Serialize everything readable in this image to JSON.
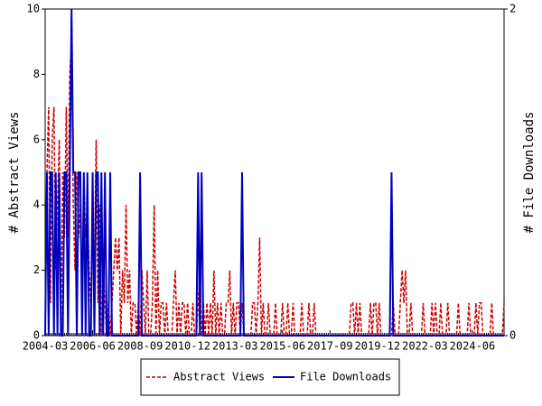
{
  "chart_data": {
    "type": "line",
    "y_label": "# Abstract Views",
    "y2_label": "# File Downloads",
    "categories": [
      "2004-03",
      null,
      null,
      null,
      null,
      null,
      null,
      null,
      null,
      null,
      null,
      null,
      null,
      null,
      null,
      null,
      null,
      null,
      null,
      null,
      null,
      null,
      null,
      null,
      null,
      null,
      null,
      "2006-06",
      null,
      null,
      null,
      null,
      null,
      null,
      null,
      null,
      null,
      null,
      null,
      null,
      null,
      null,
      null,
      null,
      null,
      null,
      null,
      null,
      null,
      null,
      null,
      null,
      null,
      null,
      "2008-09",
      null,
      null,
      null,
      null,
      null,
      null,
      null,
      null,
      null,
      null,
      null,
      null,
      null,
      null,
      null,
      null,
      null,
      null,
      null,
      null,
      null,
      null,
      null,
      null,
      null,
      null,
      "2010-12",
      null,
      null,
      null,
      null,
      null,
      null,
      null,
      null,
      null,
      null,
      null,
      null,
      null,
      null,
      null,
      null,
      null,
      null,
      null,
      null,
      null,
      null,
      null,
      null,
      null,
      null,
      "2013-03",
      null,
      null,
      null,
      null,
      null,
      null,
      null,
      null,
      null,
      null,
      null,
      null,
      null,
      null,
      null,
      null,
      null,
      null,
      null,
      null,
      null,
      null,
      null,
      null,
      null,
      null,
      "2015-06",
      null,
      null,
      null,
      null,
      null,
      null,
      null,
      null,
      null,
      null,
      null,
      null,
      null,
      null,
      null,
      null,
      null,
      null,
      null,
      null,
      null,
      null,
      null,
      null,
      null,
      null,
      "2017-09",
      null,
      null,
      null,
      null,
      null,
      null,
      null,
      null,
      null,
      null,
      null,
      null,
      null,
      null,
      null,
      null,
      null,
      null,
      null,
      null,
      null,
      null,
      null,
      null,
      null,
      null,
      "2019-12",
      null,
      null,
      null,
      null,
      null,
      null,
      null,
      null,
      null,
      null,
      null,
      null,
      null,
      null,
      null,
      null,
      null,
      null,
      null,
      null,
      null,
      null,
      null,
      null,
      null,
      null,
      "2022-03",
      null,
      null,
      null,
      null,
      null,
      null,
      null,
      null,
      null,
      null,
      null,
      null,
      null,
      null,
      null,
      null,
      null,
      null,
      null,
      null,
      null,
      null,
      null,
      null,
      null,
      null,
      "2024-06",
      null,
      null,
      null,
      null,
      null,
      null,
      null,
      null,
      null,
      null,
      null,
      null,
      null,
      null,
      null,
      null,
      null,
      null
    ],
    "series": [
      {
        "name": "Abstract Views",
        "color": "#cc0000",
        "dash": true,
        "values": [
          0,
          5,
          7,
          1,
          6,
          7,
          2,
          4,
          6,
          0,
          5,
          3,
          7,
          3,
          8,
          9,
          4,
          2,
          5,
          3,
          4,
          1,
          5,
          3,
          4,
          2,
          1,
          3,
          2,
          6,
          1,
          4,
          0,
          2,
          1,
          0,
          1,
          0,
          1,
          2,
          3,
          2,
          3,
          0,
          2,
          1,
          4,
          1,
          2,
          0,
          1,
          1,
          0,
          1,
          0,
          2,
          1,
          0,
          2,
          0,
          0,
          1,
          4,
          0,
          2,
          0,
          1,
          1,
          0,
          1,
          0,
          0,
          0,
          1,
          2,
          0,
          1,
          0,
          1,
          1,
          0,
          1,
          0,
          0,
          1,
          0,
          0,
          1,
          2,
          0,
          1,
          0,
          1,
          0,
          1,
          0,
          2,
          0,
          1,
          0,
          1,
          0,
          0,
          1,
          1,
          2,
          0,
          1,
          0,
          1,
          1,
          0,
          1,
          0,
          0,
          0,
          0,
          0,
          1,
          1,
          0,
          1,
          3,
          0,
          1,
          0,
          0,
          1,
          0,
          0,
          0,
          1,
          0,
          0,
          0,
          1,
          0,
          0,
          1,
          0,
          0,
          1,
          0,
          0,
          0,
          0,
          1,
          0,
          0,
          0,
          1,
          0,
          0,
          1,
          0,
          0,
          0,
          0,
          0,
          0,
          0,
          0,
          0,
          0,
          0,
          0,
          0,
          0,
          0,
          0,
          0,
          0,
          0,
          0,
          1,
          1,
          0,
          1,
          0,
          1,
          0,
          0,
          0,
          0,
          0,
          1,
          0,
          1,
          1,
          0,
          1,
          0,
          0,
          0,
          0,
          0,
          0,
          0,
          1,
          0,
          0,
          0,
          1,
          2,
          1,
          2,
          0,
          0,
          1,
          0,
          0,
          0,
          0,
          0,
          0,
          1,
          0,
          0,
          0,
          0,
          1,
          0,
          1,
          0,
          0,
          1,
          0,
          0,
          0,
          1,
          0,
          0,
          0,
          0,
          0,
          1,
          0,
          0,
          0,
          0,
          0,
          1,
          0,
          0,
          0,
          1,
          0,
          1,
          1,
          0,
          0,
          0,
          0,
          0,
          1,
          0,
          0,
          0,
          0,
          0,
          0,
          1
        ]
      },
      {
        "name": "File Downloads",
        "color": "#0000bb",
        "axis": "y2",
        "values": [
          0,
          1,
          0,
          1,
          1,
          0,
          1,
          0,
          1,
          0,
          0,
          1,
          1,
          0,
          1,
          2,
          1,
          1,
          0,
          1,
          1,
          0,
          1,
          0,
          1,
          0,
          0,
          1,
          0,
          1,
          1,
          0,
          1,
          0,
          1,
          0,
          0,
          1,
          0,
          0,
          0,
          0,
          0,
          0,
          0,
          0,
          0,
          0,
          0,
          0,
          0,
          0,
          0,
          0,
          1,
          0,
          0,
          0,
          0,
          0,
          0,
          0,
          0,
          0,
          0,
          0,
          0,
          0,
          0,
          0,
          0,
          0,
          0,
          0,
          0,
          0,
          0,
          0,
          0,
          0,
          0,
          0,
          0,
          0,
          0,
          0,
          0,
          1,
          0,
          1,
          0,
          0,
          0,
          0,
          0,
          0,
          0,
          0,
          0,
          0,
          0,
          0,
          0,
          0,
          0,
          0,
          0,
          0,
          0,
          0,
          0,
          0,
          1,
          0,
          0,
          0,
          0,
          0,
          0,
          0,
          0,
          0,
          0,
          0,
          0,
          0,
          0,
          0,
          0,
          0,
          0,
          0,
          0,
          0,
          0,
          0,
          0,
          0,
          0,
          0,
          0,
          0,
          0,
          0,
          0,
          0,
          0,
          0,
          0,
          0,
          0,
          0,
          0,
          0,
          0,
          0,
          0,
          0,
          0,
          0,
          0,
          0,
          0,
          0,
          0,
          0,
          0,
          0,
          0,
          0,
          0,
          0,
          0,
          0,
          0,
          0,
          0,
          0,
          0,
          0,
          0,
          0,
          0,
          0,
          0,
          0,
          0,
          0,
          0,
          0,
          0,
          0,
          0,
          0,
          0,
          0,
          0,
          1,
          0,
          0,
          0,
          0,
          0,
          0,
          0,
          0,
          0,
          0,
          0,
          0,
          0,
          0,
          0,
          0,
          0,
          0,
          0,
          0,
          0,
          0,
          0,
          0,
          0,
          0,
          0,
          0,
          0,
          0,
          0,
          0,
          0,
          0,
          0,
          0,
          0,
          0,
          0,
          0,
          0,
          0,
          0,
          0,
          0,
          0,
          0,
          0,
          0,
          0,
          0,
          0,
          0,
          0,
          0,
          0,
          0,
          0,
          0,
          0,
          0,
          0,
          0,
          0
        ]
      }
    ],
    "ylim": [
      0,
      10
    ],
    "yticks": [
      0,
      2,
      4,
      6,
      8,
      10
    ],
    "y2lim": [
      0,
      2
    ],
    "y2ticks": [
      0,
      2
    ],
    "legend": "bottom"
  }
}
